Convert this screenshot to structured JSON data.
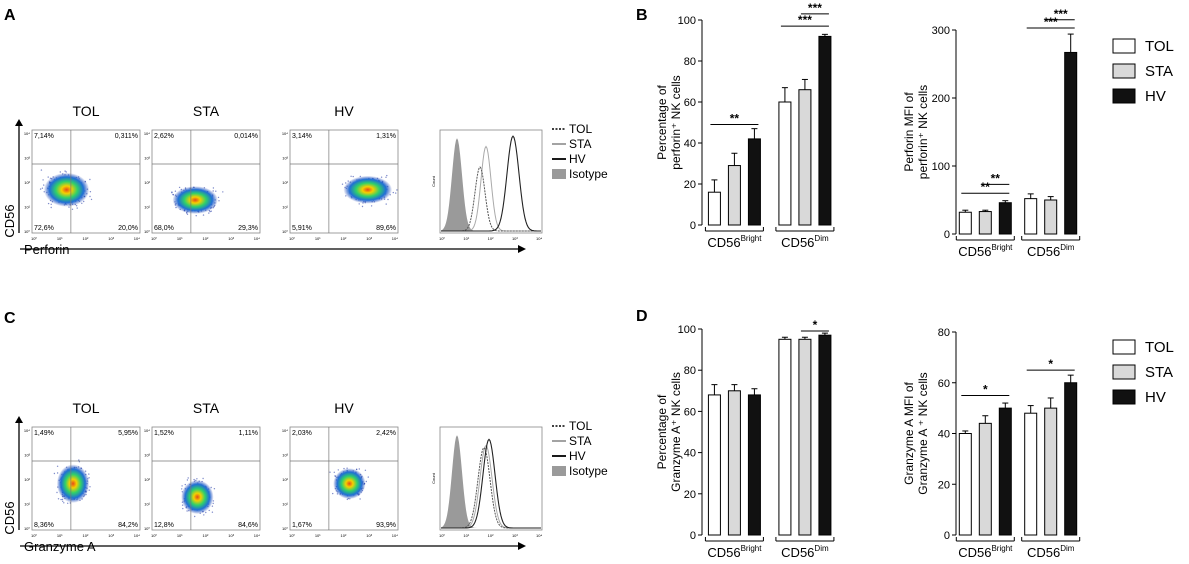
{
  "panel_letters": {
    "a": "A",
    "b": "B",
    "c": "C",
    "d": "D"
  },
  "groups": [
    "TOL",
    "STA",
    "HV"
  ],
  "colors": {
    "TOL": "#ffffff",
    "STA": "#d9d9d9",
    "HV": "#111111",
    "isotype": "#9a9a9a",
    "axis": "#000000"
  },
  "flow": {
    "A": {
      "y_axis": "CD56",
      "x_axis": "Perforin",
      "decade_labels": [
        "10⁰",
        "10¹",
        "10²",
        "10³",
        "10⁴"
      ],
      "plots": [
        {
          "title": "TOL",
          "q": [
            "7,14%",
            "0,311%",
            "72,6%",
            "20,0%"
          ]
        },
        {
          "title": "STA",
          "q": [
            "2,62%",
            "0,014%",
            "68,0%",
            "29,3%"
          ]
        },
        {
          "title": "HV",
          "q": [
            "3,14%",
            "1,31%",
            "5,91%",
            "89,6%"
          ]
        }
      ],
      "histogram": {
        "ylabel": "Count",
        "legend": [
          "TOL",
          "STA",
          "HV",
          "Isotype"
        ]
      }
    },
    "C": {
      "y_axis": "CD56",
      "x_axis": "Granzyme A",
      "decade_labels": [
        "10⁰",
        "10¹",
        "10²",
        "10³",
        "10⁴"
      ],
      "plots": [
        {
          "title": "TOL",
          "q": [
            "1,49%",
            "5,95%",
            "8,36%",
            "84,2%"
          ]
        },
        {
          "title": "STA",
          "q": [
            "1,52%",
            "1,11%",
            "12,8%",
            "84,6%"
          ]
        },
        {
          "title": "HV",
          "q": [
            "2,03%",
            "2,42%",
            "1,67%",
            "93,9%"
          ]
        }
      ],
      "histogram": {
        "ylabel": "Count",
        "legend": [
          "TOL",
          "STA",
          "HV",
          "Isotype"
        ]
      }
    }
  },
  "chart_data": [
    {
      "id": "B1",
      "type": "bar",
      "ylabel_lines": [
        "Percentage of",
        "perforin⁺ NK cells"
      ],
      "ylim": [
        0,
        100
      ],
      "yticks": [
        0,
        20,
        40,
        60,
        80,
        100
      ],
      "categories": [
        "CD56",
        "CD56"
      ],
      "category_sup": [
        "Bright",
        "Dim"
      ],
      "series": [
        {
          "name": "TOL",
          "values": [
            16,
            60
          ],
          "errors": [
            6,
            7
          ]
        },
        {
          "name": "STA",
          "values": [
            29,
            66
          ],
          "errors": [
            6,
            5
          ]
        },
        {
          "name": "HV",
          "values": [
            42,
            92
          ],
          "errors": [
            5,
            1
          ]
        }
      ],
      "annotations": [
        {
          "cat": 0,
          "from": "TOL",
          "to": "HV",
          "label": "**",
          "y": 49
        },
        {
          "cat": 1,
          "from": "TOL",
          "to": "HV",
          "label": "***",
          "y": 97
        },
        {
          "cat": 1,
          "from": "STA",
          "to": "HV",
          "label": "***",
          "y": 103
        }
      ]
    },
    {
      "id": "B2",
      "type": "bar",
      "ylabel_lines": [
        "Perforin MFI of",
        "perforin⁺ NK cells"
      ],
      "ylim": [
        0,
        300
      ],
      "yticks": [
        0,
        100,
        200,
        300
      ],
      "categories": [
        "CD56",
        "CD56"
      ],
      "category_sup": [
        "Bright",
        "Dim"
      ],
      "series": [
        {
          "name": "TOL",
          "values": [
            32,
            52
          ],
          "errors": [
            3,
            7
          ]
        },
        {
          "name": "STA",
          "values": [
            33,
            50
          ],
          "errors": [
            2,
            5
          ]
        },
        {
          "name": "HV",
          "values": [
            46,
            267
          ],
          "errors": [
            3,
            27
          ]
        }
      ],
      "annotations": [
        {
          "cat": 0,
          "from": "TOL",
          "to": "HV",
          "label": "**",
          "y": 60
        },
        {
          "cat": 0,
          "from": "STA",
          "to": "HV",
          "label": "**",
          "y": 73
        },
        {
          "cat": 1,
          "from": "TOL",
          "to": "HV",
          "label": "***",
          "y": 303
        },
        {
          "cat": 1,
          "from": "STA",
          "to": "HV",
          "label": "***",
          "y": 315
        }
      ]
    },
    {
      "id": "D1",
      "type": "bar",
      "ylabel_lines": [
        "Percentage of",
        "Granzyme A⁺ NK cells"
      ],
      "ylim": [
        0,
        100
      ],
      "yticks": [
        0,
        20,
        40,
        60,
        80,
        100
      ],
      "categories": [
        "CD56",
        "CD56"
      ],
      "category_sup": [
        "Bright",
        "Dim"
      ],
      "series": [
        {
          "name": "TOL",
          "values": [
            68,
            95
          ],
          "errors": [
            5,
            1
          ]
        },
        {
          "name": "STA",
          "values": [
            70,
            95
          ],
          "errors": [
            3,
            1
          ]
        },
        {
          "name": "HV",
          "values": [
            68,
            97
          ],
          "errors": [
            3,
            1
          ]
        }
      ],
      "annotations": [
        {
          "cat": 1,
          "from": "STA",
          "to": "HV",
          "label": "*",
          "y": 99
        }
      ]
    },
    {
      "id": "D2",
      "type": "bar",
      "ylabel_lines": [
        "Granzyme A MFI of",
        "Granzyme A ⁺ NK cells"
      ],
      "ylim": [
        0,
        80
      ],
      "yticks": [
        0,
        20,
        40,
        60,
        80
      ],
      "categories": [
        "CD56",
        "CD56"
      ],
      "category_sup": [
        "Bright",
        "Dim"
      ],
      "series": [
        {
          "name": "TOL",
          "values": [
            40,
            48
          ],
          "errors": [
            1,
            3
          ]
        },
        {
          "name": "STA",
          "values": [
            44,
            50
          ],
          "errors": [
            3,
            4
          ]
        },
        {
          "name": "HV",
          "values": [
            50,
            60
          ],
          "errors": [
            2,
            3
          ]
        }
      ],
      "annotations": [
        {
          "cat": 0,
          "from": "TOL",
          "to": "HV",
          "label": "*",
          "y": 55
        },
        {
          "cat": 1,
          "from": "TOL",
          "to": "HV",
          "label": "*",
          "y": 65
        }
      ]
    }
  ]
}
